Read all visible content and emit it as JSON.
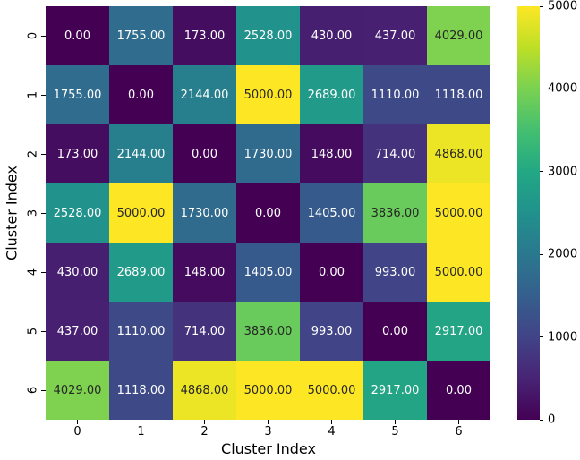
{
  "chart_data": {
    "type": "heatmap",
    "title": "",
    "xlabel": "Cluster Index",
    "ylabel": "Cluster Index",
    "x_ticklabels": [
      "0",
      "1",
      "2",
      "3",
      "4",
      "5",
      "6"
    ],
    "y_ticklabels": [
      "0",
      "1",
      "2",
      "3",
      "4",
      "5",
      "6"
    ],
    "values": [
      [
        0,
        1755,
        173,
        2528,
        430,
        437,
        4029
      ],
      [
        1755,
        0,
        2144,
        5000,
        2689,
        1110,
        1118
      ],
      [
        173,
        2144,
        0,
        1730,
        148,
        714,
        4868
      ],
      [
        2528,
        5000,
        1730,
        0,
        1405,
        3836,
        5000
      ],
      [
        430,
        2689,
        148,
        1405,
        0,
        993,
        5000
      ],
      [
        437,
        1110,
        714,
        3836,
        993,
        0,
        2917
      ],
      [
        4029,
        1118,
        4868,
        5000,
        5000,
        2917,
        0
      ]
    ],
    "annot_decimals": 2,
    "vmin": 0,
    "vmax": 5000,
    "colormap": "viridis",
    "colormap_stops": [
      "#440154",
      "#482475",
      "#414487",
      "#355f8d",
      "#2a788e",
      "#21918c",
      "#22a884",
      "#44bf70",
      "#7ad151",
      "#bddf26",
      "#fde725"
    ],
    "colorbar": {
      "ticks": [
        0,
        1000,
        2000,
        3000,
        4000,
        5000
      ],
      "position": "right"
    },
    "grid": false,
    "legend": false
  },
  "colors": {
    "annot_light": "#ffffff",
    "annot_dark": "#262626",
    "tick_color": "#000000",
    "background": "#ffffff"
  }
}
